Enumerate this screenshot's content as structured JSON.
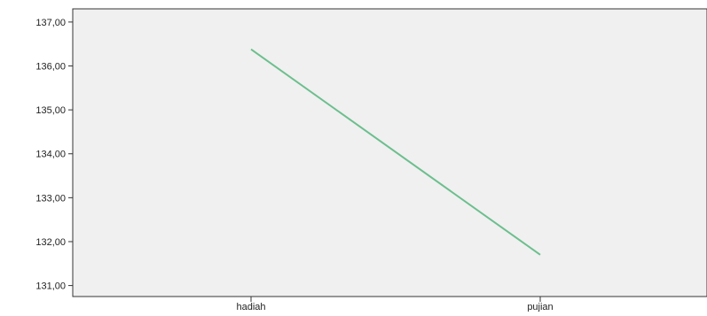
{
  "chart_data": {
    "type": "line",
    "categories": [
      "hadiah",
      "pujian"
    ],
    "series": [
      {
        "values": [
          136.38,
          131.7
        ]
      }
    ],
    "y_ticks": [
      "131,00",
      "132,00",
      "133,00",
      "134,00",
      "135,00",
      "136,00",
      "137,00"
    ],
    "ylim": [
      130.75,
      137.3
    ],
    "title": "",
    "xlabel": "",
    "ylabel": "",
    "grid": false,
    "colors": {
      "plot_background": "#f0f0f0",
      "line": "#6cbf8e",
      "axis": "#333333"
    }
  }
}
